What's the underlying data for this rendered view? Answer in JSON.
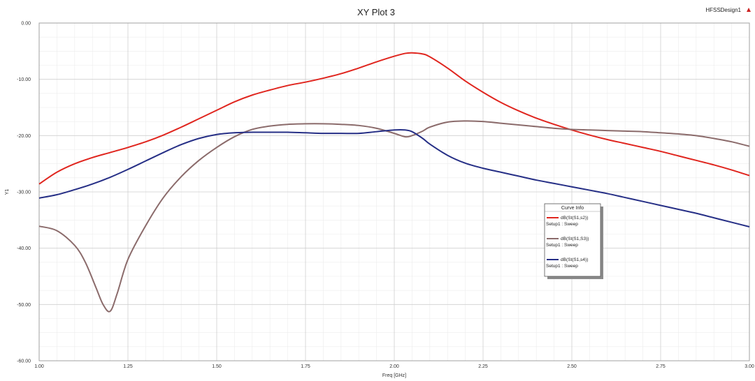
{
  "design_name": "HFSSDesign1",
  "chart_data": {
    "type": "line",
    "title": "XY Plot 3",
    "xlabel": "Freq [GHz]",
    "ylabel": "Y1",
    "xlim": [
      1.0,
      3.0
    ],
    "ylim": [
      -60.0,
      0.0
    ],
    "grid": true,
    "x_ticks": [
      "1.00",
      "1.25",
      "1.50",
      "1.75",
      "2.00",
      "2.25",
      "2.50",
      "2.75",
      "3.00"
    ],
    "y_ticks": [
      "0.00",
      "-10.00",
      "-20.00",
      "-30.00",
      "-40.00",
      "-50.00",
      "-60.00"
    ],
    "legend": {
      "title": "Curve Info",
      "placement": "center-right"
    },
    "series": [
      {
        "name": "dB(St(S1,s2))",
        "setup": "Setup1 : Sweep",
        "color": "#e0261f",
        "x": [
          1.0,
          1.05,
          1.1,
          1.15,
          1.2,
          1.25,
          1.3,
          1.35,
          1.4,
          1.45,
          1.5,
          1.55,
          1.6,
          1.65,
          1.7,
          1.75,
          1.8,
          1.85,
          1.9,
          1.95,
          2.0,
          2.03,
          2.05,
          2.08,
          2.1,
          2.15,
          2.2,
          2.25,
          2.3,
          2.35,
          2.4,
          2.45,
          2.5,
          2.55,
          2.6,
          2.65,
          2.7,
          2.75,
          2.8,
          2.85,
          2.9,
          2.95,
          3.0
        ],
        "y": [
          -28.6,
          -26.5,
          -25.0,
          -23.9,
          -23.0,
          -22.1,
          -21.1,
          -19.9,
          -18.5,
          -17.0,
          -15.5,
          -14.0,
          -12.8,
          -11.9,
          -11.1,
          -10.5,
          -9.8,
          -9.0,
          -8.0,
          -6.9,
          -5.9,
          -5.4,
          -5.3,
          -5.5,
          -6.0,
          -8.0,
          -10.3,
          -12.3,
          -14.1,
          -15.6,
          -16.9,
          -18.0,
          -19.0,
          -19.9,
          -20.7,
          -21.4,
          -22.1,
          -22.8,
          -23.6,
          -24.4,
          -25.2,
          -26.1,
          -27.1
        ]
      },
      {
        "name": "dB(St(S1,S3))",
        "setup": "Setup1 : Sweep",
        "color": "#8b6b6b",
        "x": [
          1.0,
          1.05,
          1.1,
          1.13,
          1.16,
          1.18,
          1.2,
          1.22,
          1.25,
          1.3,
          1.35,
          1.4,
          1.45,
          1.5,
          1.55,
          1.6,
          1.65,
          1.7,
          1.75,
          1.8,
          1.85,
          1.9,
          1.95,
          2.0,
          2.03,
          2.05,
          2.08,
          2.1,
          2.15,
          2.2,
          2.25,
          2.3,
          2.35,
          2.4,
          2.45,
          2.5,
          2.55,
          2.6,
          2.65,
          2.7,
          2.75,
          2.8,
          2.85,
          2.9,
          2.95,
          3.0
        ],
        "y": [
          -36.1,
          -36.9,
          -39.5,
          -42.5,
          -47.0,
          -50.0,
          -51.2,
          -48.0,
          -42.0,
          -36.0,
          -31.0,
          -27.3,
          -24.4,
          -22.1,
          -20.2,
          -18.9,
          -18.3,
          -18.0,
          -17.9,
          -17.9,
          -18.0,
          -18.2,
          -18.7,
          -19.6,
          -20.2,
          -20.0,
          -19.2,
          -18.5,
          -17.6,
          -17.4,
          -17.5,
          -17.8,
          -18.1,
          -18.4,
          -18.7,
          -18.9,
          -19.0,
          -19.1,
          -19.2,
          -19.3,
          -19.5,
          -19.7,
          -20.0,
          -20.5,
          -21.1,
          -21.9
        ]
      },
      {
        "name": "dB(St(S1,s4))",
        "setup": "Setup1 : Sweep",
        "color": "#262f86",
        "x": [
          1.0,
          1.05,
          1.1,
          1.15,
          1.2,
          1.25,
          1.3,
          1.35,
          1.4,
          1.45,
          1.5,
          1.55,
          1.6,
          1.65,
          1.7,
          1.75,
          1.8,
          1.85,
          1.9,
          1.95,
          2.0,
          2.03,
          2.05,
          2.08,
          2.1,
          2.15,
          2.2,
          2.25,
          2.3,
          2.35,
          2.4,
          2.45,
          2.5,
          2.55,
          2.6,
          2.65,
          2.7,
          2.75,
          2.8,
          2.85,
          2.9,
          2.95,
          3.0
        ],
        "y": [
          -31.1,
          -30.5,
          -29.6,
          -28.6,
          -27.4,
          -26.0,
          -24.5,
          -23.0,
          -21.6,
          -20.5,
          -19.8,
          -19.5,
          -19.4,
          -19.4,
          -19.4,
          -19.5,
          -19.6,
          -19.6,
          -19.6,
          -19.3,
          -19.0,
          -19.0,
          -19.3,
          -20.5,
          -21.5,
          -23.5,
          -24.9,
          -25.8,
          -26.5,
          -27.2,
          -27.9,
          -28.5,
          -29.1,
          -29.7,
          -30.3,
          -31.0,
          -31.7,
          -32.4,
          -33.1,
          -33.8,
          -34.6,
          -35.4,
          -36.2
        ]
      }
    ]
  }
}
